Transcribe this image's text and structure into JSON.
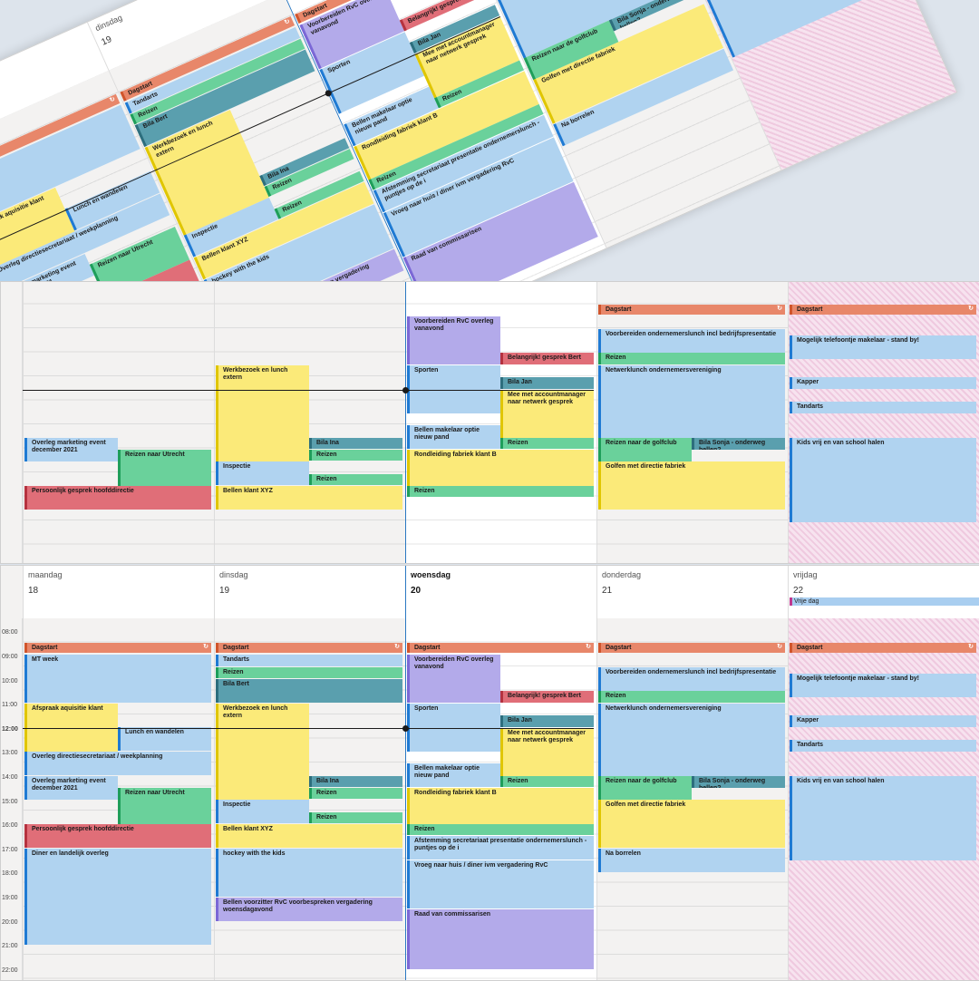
{
  "days": [
    {
      "name": "maandag",
      "date": "18"
    },
    {
      "name": "dinsdag",
      "date": "19"
    },
    {
      "name": "woensdag",
      "date": "20"
    },
    {
      "name": "donderdag",
      "date": "21"
    },
    {
      "name": "vrijdag",
      "date": "22"
    }
  ],
  "allday": {
    "label": "Vrije dag"
  },
  "hours": [
    "08:00",
    "09:00",
    "10:00",
    "11:00",
    "12:00",
    "13:00",
    "14:00",
    "15:00",
    "16:00",
    "17:00",
    "18:00",
    "19:00",
    "20:00",
    "21:00",
    "22:00"
  ],
  "sync_icon": "↻",
  "events": {
    "ma_dagstart": "Dagstart",
    "ma_mt": "MT week",
    "ma_afspraak": "Afspraak aquisitie klant",
    "ma_lunch": "Lunch en wandelen",
    "ma_overleg_dir": "Overleg directiesecretariaat / weekplanning",
    "ma_overleg_mkt": "Overleg marketing event december 2021",
    "ma_reizen_utrecht": "Reizen naar Utrecht",
    "ma_persoonlijk": "Persoonlijk gesprek hoofddirectie",
    "ma_diner": "Diner en landelijk overleg",
    "di_dagstart": "Dagstart",
    "di_tandarts": "Tandarts",
    "di_reizen1": "Reizen",
    "di_bila_bert": "Bila Bert",
    "di_werkbezoek": "Werkbezoek en lunch extern",
    "di_bila_ina": "Bila Ina",
    "di_reizen2": "Reizen",
    "di_inspectie": "Inspectie",
    "di_reizen3": "Reizen",
    "di_bellen_xyz": "Bellen klant XYZ",
    "di_hockey": "hockey with the kids",
    "di_bellen_rvc": "Bellen voorzitter RvC voorbespreken vergadering woensdagavond",
    "wo_dagstart": "Dagstart",
    "wo_voorbereiden": "Voorbereiden RvC overleg vanavond",
    "wo_belangrijk": "Belangrijk! gesprek Bert",
    "wo_sporten": "Sporten",
    "wo_bila_jan": "Bila Jan",
    "wo_accountmanager": "Mee met accountmanager naar netwerk gesprek",
    "wo_bellen_makelaar": "Bellen makelaar optie nieuw pand",
    "wo_reizen1": "Reizen",
    "wo_rondleiding": "Rondleiding fabriek klant B",
    "wo_reizen2": "Reizen",
    "wo_afstemming": "Afstemming secretariaat presentatie ondernemerslunch - puntjes op de i",
    "wo_vroeg": "Vroeg naar huis / diner ivm vergadering RvC",
    "wo_raad": "Raad van commissarisen",
    "do_dagstart": "Dagstart",
    "do_voorbereiden": "Voorbereiden ondernemerslunch incl bedrijfspresentatie",
    "do_reizen": "Reizen",
    "do_netwerklunch": "Netwerklunch ondernemersvereniging",
    "do_golfclub": "Reizen naar de golfclub",
    "do_bila_sonja": "Bila Sonja - onderweg bellen?",
    "do_golfen": "Golfen met directie fabriek",
    "do_borrelen": "Na borrelen",
    "vr_dagstart": "Dagstart",
    "vr_makelaar": "Mogelijk telefoontje makelaar - stand by!",
    "vr_kapper": "Kapper",
    "vr_tandarts": "Tandarts",
    "vr_kids": "Kids vrij en van school halen"
  },
  "colors": {
    "orange": "#e8876a",
    "blue": "#b0d3f0",
    "green": "#6ad19b",
    "teal": "#5a9fae",
    "yellow": "#fbea79",
    "purple": "#b3aaea",
    "red": "#e06e78",
    "free_pink": "#efc9df"
  }
}
